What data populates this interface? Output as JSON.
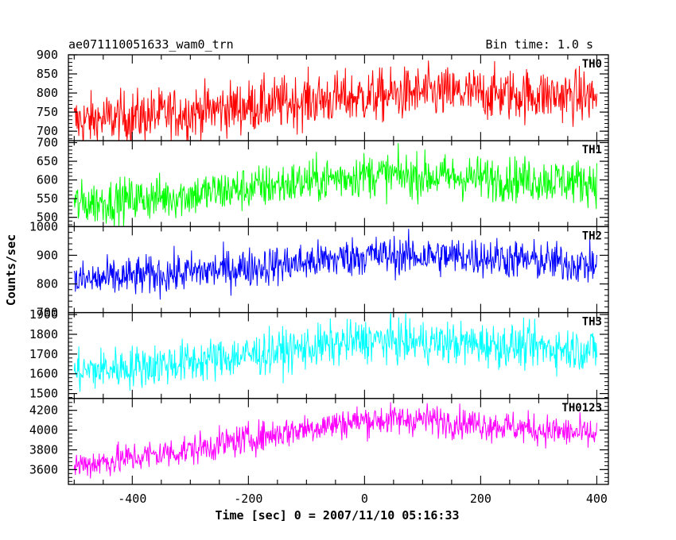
{
  "header": {
    "title": "ae071110051633_wam0_trn",
    "bin_time": "Bin time: 1.0 s"
  },
  "chart_data": {
    "type": "line",
    "title": "ae071110051633_wam0_trn",
    "subtitle": "Bin time: 1.0 s",
    "xlabel": "Time [sec] 0 = 2007/11/10 05:16:33",
    "ylabel": "Counts/sec",
    "xlim": [
      -510,
      420
    ],
    "x_ticks": [
      -400,
      -200,
      0,
      200,
      400
    ],
    "x_range": [
      -500,
      400
    ],
    "grid": false,
    "panels": [
      {
        "name": "TH0",
        "color": "#ff0000",
        "ylim": [
          675,
          900
        ],
        "y_ticks": [
          700,
          750,
          800,
          850,
          900
        ],
        "trend": [
          [
            -500,
            725
          ],
          [
            -300,
            750
          ],
          [
            -100,
            780
          ],
          [
            100,
            800
          ],
          [
            300,
            795
          ],
          [
            400,
            790
          ]
        ],
        "noise": 35
      },
      {
        "name": "TH1",
        "color": "#00ff00",
        "ylim": [
          475,
          705
        ],
        "y_ticks": [
          500,
          550,
          600,
          650,
          700
        ],
        "trend": [
          [
            -500,
            535
          ],
          [
            -300,
            560
          ],
          [
            -100,
            595
          ],
          [
            0,
            615
          ],
          [
            200,
            605
          ],
          [
            400,
            595
          ]
        ],
        "noise": 30
      },
      {
        "name": "TH2",
        "color": "#0000ff",
        "ylim": [
          700,
          1000
        ],
        "y_ticks": [
          700,
          800,
          900,
          1000
        ],
        "trend": [
          [
            -500,
            810
          ],
          [
            -300,
            840
          ],
          [
            -100,
            875
          ],
          [
            0,
            900
          ],
          [
            200,
            895
          ],
          [
            400,
            865
          ]
        ],
        "noise": 35
      },
      {
        "name": "TH3",
        "color": "#00ffff",
        "ylim": [
          1475,
          1910
        ],
        "y_ticks": [
          1500,
          1600,
          1700,
          1800,
          1900
        ],
        "trend": [
          [
            -500,
            1610
          ],
          [
            -300,
            1660
          ],
          [
            -100,
            1730
          ],
          [
            0,
            1770
          ],
          [
            200,
            1750
          ],
          [
            400,
            1720
          ]
        ],
        "noise": 55
      },
      {
        "name": "TH0123",
        "color": "#ff00ff",
        "ylim": [
          3450,
          4320
        ],
        "y_ticks": [
          3600,
          3800,
          4000,
          4200
        ],
        "trend": [
          [
            -500,
            3640
          ],
          [
            -300,
            3800
          ],
          [
            -100,
            4020
          ],
          [
            0,
            4100
          ],
          [
            100,
            4110
          ],
          [
            200,
            4060
          ],
          [
            400,
            3950
          ]
        ],
        "noise": 80
      }
    ]
  }
}
